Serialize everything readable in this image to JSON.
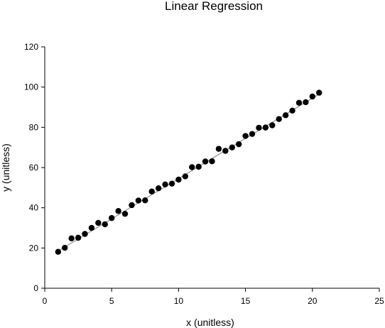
{
  "chart_data": {
    "type": "scatter",
    "title": "Linear Regression",
    "xlabel": "x (unitless)",
    "ylabel": "y (unitless)",
    "xlim": [
      0,
      25
    ],
    "ylim": [
      0,
      120
    ],
    "xticks": [
      0,
      5,
      10,
      15,
      20,
      25
    ],
    "yticks": [
      0,
      20,
      40,
      60,
      80,
      100,
      120
    ],
    "grid": false,
    "legend": "none",
    "marker_color": "#000000",
    "trendline": {
      "slope": 4.0,
      "intercept": 14.5,
      "x_range": [
        1,
        20.5
      ],
      "color": "#808080"
    },
    "series": [
      {
        "points": [
          [
            1.0,
            18.1
          ],
          [
            1.5,
            20.1
          ],
          [
            2.0,
            24.8
          ],
          [
            2.5,
            25.1
          ],
          [
            3.0,
            27.0
          ],
          [
            3.5,
            30.0
          ],
          [
            4.0,
            32.5
          ],
          [
            4.5,
            31.8
          ],
          [
            5.0,
            34.9
          ],
          [
            5.5,
            38.4
          ],
          [
            6.0,
            37.0
          ],
          [
            6.5,
            41.3
          ],
          [
            7.0,
            43.6
          ],
          [
            7.5,
            43.7
          ],
          [
            8.0,
            48.1
          ],
          [
            8.5,
            49.7
          ],
          [
            9.0,
            51.6
          ],
          [
            9.5,
            52.0
          ],
          [
            10.0,
            54.0
          ],
          [
            10.5,
            55.6
          ],
          [
            11.0,
            60.2
          ],
          [
            11.5,
            60.4
          ],
          [
            12.0,
            63.0
          ],
          [
            12.5,
            63.1
          ],
          [
            13.0,
            69.3
          ],
          [
            13.5,
            68.3
          ],
          [
            14.0,
            70.0
          ],
          [
            14.5,
            71.6
          ],
          [
            15.0,
            75.7
          ],
          [
            15.5,
            76.7
          ],
          [
            16.0,
            79.8
          ],
          [
            16.5,
            79.9
          ],
          [
            17.0,
            81.0
          ],
          [
            17.5,
            84.1
          ],
          [
            18.0,
            86.0
          ],
          [
            18.5,
            88.3
          ],
          [
            19.0,
            92.2
          ],
          [
            19.5,
            92.5
          ],
          [
            20.0,
            95.3
          ],
          [
            20.5,
            97.2
          ]
        ]
      }
    ]
  }
}
